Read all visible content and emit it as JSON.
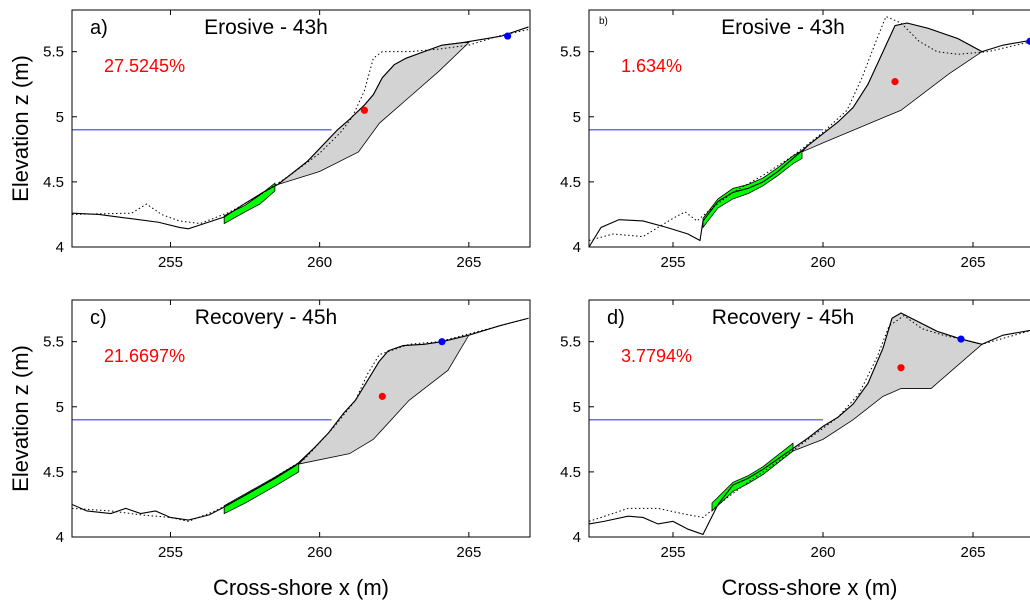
{
  "chart_data": [
    {
      "type": "line",
      "panel_label": "a)",
      "title": "Erosive - 43h",
      "annotation": "27.5245%",
      "annotation_color": "#ff0000",
      "ylabel": "Elevation z (m)",
      "xlim": [
        251.7,
        267.05
      ],
      "ylim": [
        4,
        5.82
      ],
      "xticks": [
        255,
        260,
        265
      ],
      "yticks": [
        4,
        4.5,
        5,
        5.5
      ],
      "series": [
        {
          "x": [
            251.7,
            253.7,
            254.2,
            254.7,
            255.3,
            256.0,
            257.0,
            258.0,
            259.0,
            260.0,
            260.7,
            261.1,
            261.5,
            261.8,
            262.1,
            263.0,
            264.0,
            265.0,
            266.0,
            267.0
          ],
          "values": [
            4.25,
            4.26,
            4.33,
            4.25,
            4.2,
            4.18,
            4.27,
            4.4,
            4.55,
            4.72,
            4.88,
            5.0,
            5.2,
            5.45,
            5.5,
            5.5,
            5.52,
            5.55,
            5.62,
            5.67
          ],
          "color": "#000000",
          "line_style": "dotted"
        },
        {
          "x": [
            251.7,
            252.6,
            253.6,
            254.6,
            255.3,
            255.6,
            256.0,
            256.8,
            257.4,
            258.1,
            258.6,
            259.1,
            259.6,
            260.1,
            260.6,
            261.0,
            261.5,
            261.8,
            262.1,
            262.5,
            262.9,
            263.5,
            264.1,
            264.8,
            266.1,
            267.0
          ],
          "values": [
            4.26,
            4.25,
            4.22,
            4.19,
            4.15,
            4.14,
            4.17,
            4.23,
            4.32,
            4.42,
            4.48,
            4.57,
            4.66,
            4.78,
            4.9,
            4.98,
            5.09,
            5.17,
            5.3,
            5.4,
            5.45,
            5.5,
            5.55,
            5.57,
            5.62,
            5.69
          ],
          "color": "#000000",
          "line_style": "solid"
        }
      ],
      "shade": {
        "x": [
          258.6,
          259.1,
          259.6,
          260.1,
          260.6,
          261.0,
          261.5,
          261.8,
          262.1,
          262.5,
          262.9,
          263.5,
          264.1,
          264.8,
          265.0,
          264.0,
          263.0,
          262.0,
          261.3,
          260.0,
          258.6
        ],
        "y": [
          4.48,
          4.57,
          4.66,
          4.78,
          4.9,
          4.98,
          5.09,
          5.17,
          5.3,
          5.4,
          5.45,
          5.5,
          5.55,
          5.57,
          5.57,
          5.35,
          5.15,
          4.95,
          4.73,
          4.58,
          4.48
        ],
        "color": "#d3d3d3"
      },
      "band": {
        "x": [
          256.8,
          257.5,
          258.0,
          258.5,
          258.5,
          258.0,
          257.5,
          256.8
        ],
        "y": [
          4.24,
          4.32,
          4.4,
          4.49,
          4.43,
          4.33,
          4.27,
          4.18
        ],
        "color": "#00ff00"
      },
      "hline": {
        "y": 4.9,
        "x": [
          251.7,
          260.4
        ],
        "color": "#3b3bff"
      },
      "points": [
        {
          "x": 261.5,
          "y": 5.05,
          "color": "#ff0000"
        },
        {
          "x": 266.3,
          "y": 5.62,
          "color": "#0000ff"
        }
      ]
    },
    {
      "type": "line",
      "panel_label": "b)",
      "title": "Erosive - 43h",
      "annotation": "1.634%",
      "annotation_color": "#ff0000",
      "xlim": [
        252.2,
        267.0
      ],
      "ylim": [
        4,
        5.82
      ],
      "xticks": [
        255,
        260,
        265
      ],
      "yticks": [
        4,
        4.5,
        5,
        5.5
      ],
      "series": [
        {
          "x": [
            252.2,
            253.0,
            254.0,
            255.0,
            255.4,
            255.8,
            256.3,
            257.0,
            258.0,
            259.0,
            260.0,
            260.8,
            261.3,
            261.8,
            262.1,
            262.6,
            263.2,
            263.8,
            264.5,
            265.5,
            267.0
          ],
          "values": [
            4.05,
            4.1,
            4.08,
            4.22,
            4.27,
            4.2,
            4.3,
            4.42,
            4.55,
            4.7,
            4.88,
            5.05,
            5.3,
            5.6,
            5.77,
            5.72,
            5.58,
            5.5,
            5.48,
            5.5,
            5.58
          ],
          "color": "#000000",
          "line_style": "dotted"
        },
        {
          "x": [
            252.2,
            252.6,
            253.2,
            254.0,
            254.8,
            255.5,
            255.9,
            256.0,
            256.5,
            257.0,
            257.5,
            258.0,
            258.5,
            259.0,
            259.5,
            260.0,
            260.5,
            261.0,
            261.5,
            262.0,
            262.4,
            262.8,
            263.5,
            264.5,
            265.3,
            266.0,
            267.0
          ],
          "values": [
            4.0,
            4.15,
            4.21,
            4.2,
            4.15,
            4.1,
            4.05,
            4.2,
            4.35,
            4.42,
            4.45,
            4.5,
            4.58,
            4.68,
            4.78,
            4.87,
            4.96,
            5.07,
            5.25,
            5.5,
            5.7,
            5.72,
            5.68,
            5.6,
            5.5,
            5.55,
            5.59
          ],
          "color": "#000000",
          "line_style": "solid"
        }
      ],
      "shade": {
        "x": [
          259.3,
          259.5,
          260.0,
          260.5,
          261.0,
          261.5,
          262.0,
          262.4,
          262.8,
          263.5,
          264.5,
          265.3,
          264.2,
          262.6,
          260.0,
          259.3
        ],
        "y": [
          4.73,
          4.78,
          4.87,
          4.96,
          5.07,
          5.25,
          5.5,
          5.7,
          5.72,
          5.68,
          5.6,
          5.5,
          5.33,
          5.05,
          4.8,
          4.73
        ],
        "color": "#d3d3d3"
      },
      "band": {
        "x": [
          256.0,
          256.5,
          257.0,
          257.5,
          258.0,
          258.5,
          259.0,
          259.3,
          259.3,
          259.0,
          258.5,
          258.0,
          257.5,
          257.0,
          256.5,
          256.0
        ],
        "y": [
          4.22,
          4.37,
          4.45,
          4.48,
          4.53,
          4.61,
          4.7,
          4.74,
          4.68,
          4.64,
          4.55,
          4.47,
          4.41,
          4.37,
          4.3,
          4.15
        ],
        "color": "#00ff00"
      },
      "hline": {
        "y": 4.9,
        "x": [
          252.2,
          260.0
        ],
        "color": "#3b3bff"
      },
      "points": [
        {
          "x": 262.4,
          "y": 5.27,
          "color": "#ff0000"
        },
        {
          "x": 266.9,
          "y": 5.58,
          "color": "#0000ff"
        }
      ]
    },
    {
      "type": "line",
      "panel_label": "c)",
      "title": "Recovery - 45h",
      "annotation": "21.6697%",
      "annotation_color": "#ff0000",
      "ylabel": "Elevation z (m)",
      "xlabel": "Cross-shore x (m)",
      "xlim": [
        251.7,
        267.05
      ],
      "ylim": [
        4,
        5.82
      ],
      "xticks": [
        255,
        260,
        265
      ],
      "yticks": [
        4,
        4.5,
        5,
        5.5
      ],
      "series": [
        {
          "x": [
            251.7,
            253.0,
            254.0,
            255.0,
            255.6,
            256.5,
            257.5,
            258.5,
            259.5,
            260.5,
            261.2,
            261.6,
            262.0,
            263.0,
            264.0,
            265.0,
            267.0
          ],
          "values": [
            4.22,
            4.2,
            4.17,
            4.15,
            4.12,
            4.2,
            4.32,
            4.46,
            4.6,
            4.85,
            5.05,
            5.25,
            5.4,
            5.48,
            5.5,
            5.56,
            5.68
          ],
          "color": "#000000",
          "line_style": "dotted"
        },
        {
          "x": [
            251.7,
            252.2,
            253.0,
            253.5,
            254.0,
            254.5,
            255.0,
            255.6,
            256.3,
            256.8,
            257.5,
            258.5,
            259.2,
            259.8,
            260.3,
            260.8,
            261.2,
            261.6,
            262.0,
            262.3,
            262.8,
            263.5,
            264.1,
            265.0,
            266.0,
            267.0
          ],
          "values": [
            4.25,
            4.2,
            4.18,
            4.22,
            4.18,
            4.2,
            4.15,
            4.13,
            4.17,
            4.23,
            4.32,
            4.45,
            4.55,
            4.68,
            4.8,
            4.95,
            5.05,
            5.2,
            5.35,
            5.43,
            5.47,
            5.48,
            5.5,
            5.55,
            5.62,
            5.68
          ],
          "color": "#000000",
          "line_style": "solid"
        }
      ],
      "shade": {
        "x": [
          259.3,
          259.8,
          260.3,
          260.8,
          261.2,
          261.6,
          262.0,
          262.3,
          262.8,
          263.5,
          264.1,
          265.0,
          264.3,
          263.0,
          261.8,
          261.0,
          259.3
        ],
        "y": [
          4.56,
          4.68,
          4.8,
          4.95,
          5.05,
          5.2,
          5.35,
          5.43,
          5.47,
          5.48,
          5.5,
          5.55,
          5.28,
          5.05,
          4.75,
          4.64,
          4.56
        ],
        "color": "#d3d3d3"
      },
      "band": {
        "x": [
          256.8,
          257.5,
          258.5,
          259.3,
          259.3,
          258.5,
          257.5,
          256.8
        ],
        "y": [
          4.24,
          4.33,
          4.46,
          4.57,
          4.5,
          4.39,
          4.26,
          4.18
        ],
        "color": "#00ff00"
      },
      "hline": {
        "y": 4.9,
        "x": [
          251.7,
          260.4
        ],
        "color": "#3b3bff"
      },
      "points": [
        {
          "x": 262.1,
          "y": 5.08,
          "color": "#ff0000"
        },
        {
          "x": 264.1,
          "y": 5.5,
          "color": "#0000ff"
        }
      ]
    },
    {
      "type": "line",
      "panel_label": "d)",
      "title": "Recovery - 45h",
      "annotation": "3.7794%",
      "annotation_color": "#ff0000",
      "xlabel": "Cross-shore x (m)",
      "xlim": [
        252.2,
        267.0
      ],
      "ylim": [
        4,
        5.82
      ],
      "xticks": [
        255,
        260,
        265
      ],
      "yticks": [
        4,
        4.5,
        5,
        5.5
      ],
      "series": [
        {
          "x": [
            252.2,
            252.6,
            253.5,
            254.5,
            255.3,
            256.0,
            256.8,
            257.5,
            258.5,
            259.5,
            260.5,
            261.2,
            261.8,
            262.2,
            262.7,
            263.3,
            264.0,
            264.6,
            265.3,
            267.0
          ],
          "values": [
            4.12,
            4.15,
            4.22,
            4.22,
            4.18,
            4.15,
            4.3,
            4.42,
            4.58,
            4.75,
            4.92,
            5.1,
            5.38,
            5.62,
            5.7,
            5.6,
            5.55,
            5.52,
            5.48,
            5.59
          ],
          "color": "#000000",
          "line_style": "dotted"
        },
        {
          "x": [
            252.2,
            252.7,
            253.5,
            254.0,
            254.5,
            255.0,
            255.5,
            256.0,
            256.5,
            257.0,
            257.5,
            258.0,
            258.5,
            259.0,
            259.5,
            260.0,
            260.5,
            261.0,
            261.5,
            262.0,
            262.3,
            262.6,
            263.2,
            263.8,
            264.6,
            265.3,
            266.0,
            267.0
          ],
          "values": [
            4.1,
            4.12,
            4.16,
            4.15,
            4.1,
            4.12,
            4.06,
            4.02,
            4.25,
            4.4,
            4.45,
            4.52,
            4.6,
            4.68,
            4.76,
            4.85,
            4.92,
            5.02,
            5.18,
            5.45,
            5.68,
            5.72,
            5.65,
            5.58,
            5.52,
            5.48,
            5.55,
            5.59
          ],
          "color": "#000000",
          "line_style": "solid"
        }
      ],
      "shade": {
        "x": [
          259.0,
          259.5,
          260.0,
          260.5,
          261.0,
          261.5,
          262.0,
          262.3,
          262.6,
          263.2,
          263.8,
          264.6,
          265.3,
          263.6,
          262.6,
          262.0,
          261.0,
          260.0,
          259.0
        ],
        "y": [
          4.68,
          4.76,
          4.85,
          4.92,
          5.02,
          5.18,
          5.45,
          5.68,
          5.72,
          5.65,
          5.58,
          5.52,
          5.48,
          5.14,
          5.14,
          5.08,
          4.9,
          4.75,
          4.66
        ],
        "color": "#d3d3d3"
      },
      "band": {
        "x": [
          256.3,
          257.0,
          257.5,
          258.0,
          258.5,
          259.0,
          259.0,
          258.5,
          258.0,
          257.5,
          257.0,
          256.3
        ],
        "y": [
          4.26,
          4.42,
          4.47,
          4.54,
          4.63,
          4.72,
          4.66,
          4.57,
          4.48,
          4.41,
          4.35,
          4.2
        ],
        "color": "#00ff00"
      },
      "hline": {
        "y": 4.9,
        "x": [
          252.2,
          260.0
        ],
        "color": "#3b3bff"
      },
      "points": [
        {
          "x": 262.6,
          "y": 5.3,
          "color": "#ff0000"
        },
        {
          "x": 264.6,
          "y": 5.52,
          "color": "#0000ff"
        }
      ]
    }
  ]
}
